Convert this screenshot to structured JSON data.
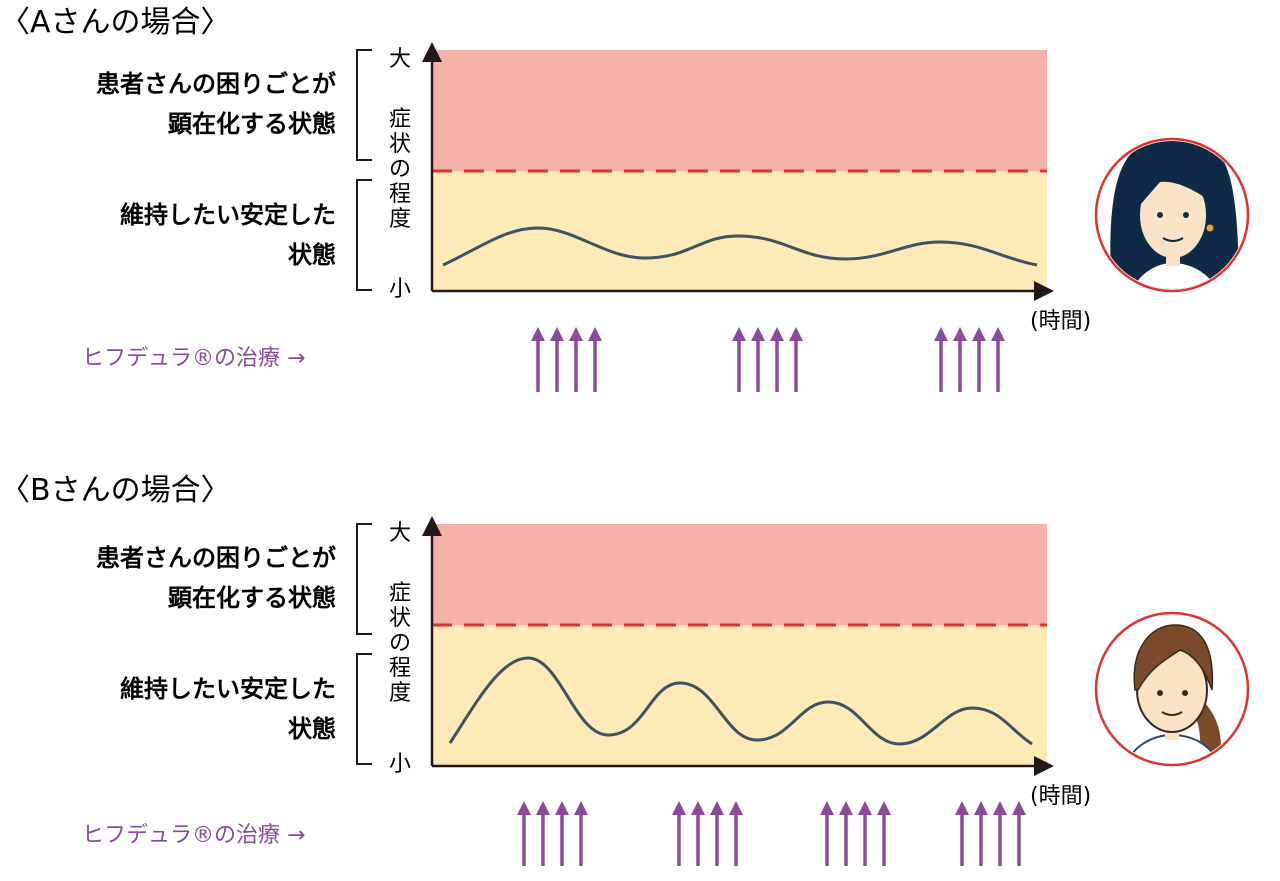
{
  "colors": {
    "danger_zone": "#f4b1a7",
    "stable_zone": "#fdeab7",
    "threshold_line": "#e0332e",
    "curve": "#3b5364",
    "arrow": "#8b4a9c",
    "treatment_text": "#8b4a9c",
    "avatar_ring": "#e0332e",
    "text": "#231815"
  },
  "panels": [
    {
      "title": "〈Aさんの場合〉",
      "upper_label_line1": "患者さんの困りごとが",
      "upper_label_line2": "顕在化する状態",
      "lower_label_line1": "維持したい安定した",
      "lower_label_line2": "状態",
      "y_axis_top": "大",
      "y_axis_bottom": "小",
      "y_axis_chars": [
        "症",
        "状",
        "の",
        "程",
        "度"
      ],
      "x_axis_label": "(時間)",
      "treatment_label": "ヒフデュラ®の治療 →",
      "treatment_arrow_groups": 3,
      "arrows_per_group": 4,
      "curve_shape": "small-amplitude wave with three shallow peaks",
      "avatar": "woman-dark-long-hair-icon"
    },
    {
      "title": "〈Bさんの場合〉",
      "upper_label_line1": "患者さんの困りごとが",
      "upper_label_line2": "顕在化する状態",
      "lower_label_line1": "維持したい安定した",
      "lower_label_line2": "状態",
      "y_axis_top": "大",
      "y_axis_bottom": "小",
      "y_axis_chars": [
        "症",
        "状",
        "の",
        "程",
        "度"
      ],
      "x_axis_label": "(時間)",
      "treatment_label": "ヒフデュラ®の治療 →",
      "treatment_arrow_groups": 4,
      "arrows_per_group": 4,
      "curve_shape": "large-amplitude wave with four decreasing peaks",
      "avatar": "woman-brown-hair-ponytail-icon"
    }
  ]
}
